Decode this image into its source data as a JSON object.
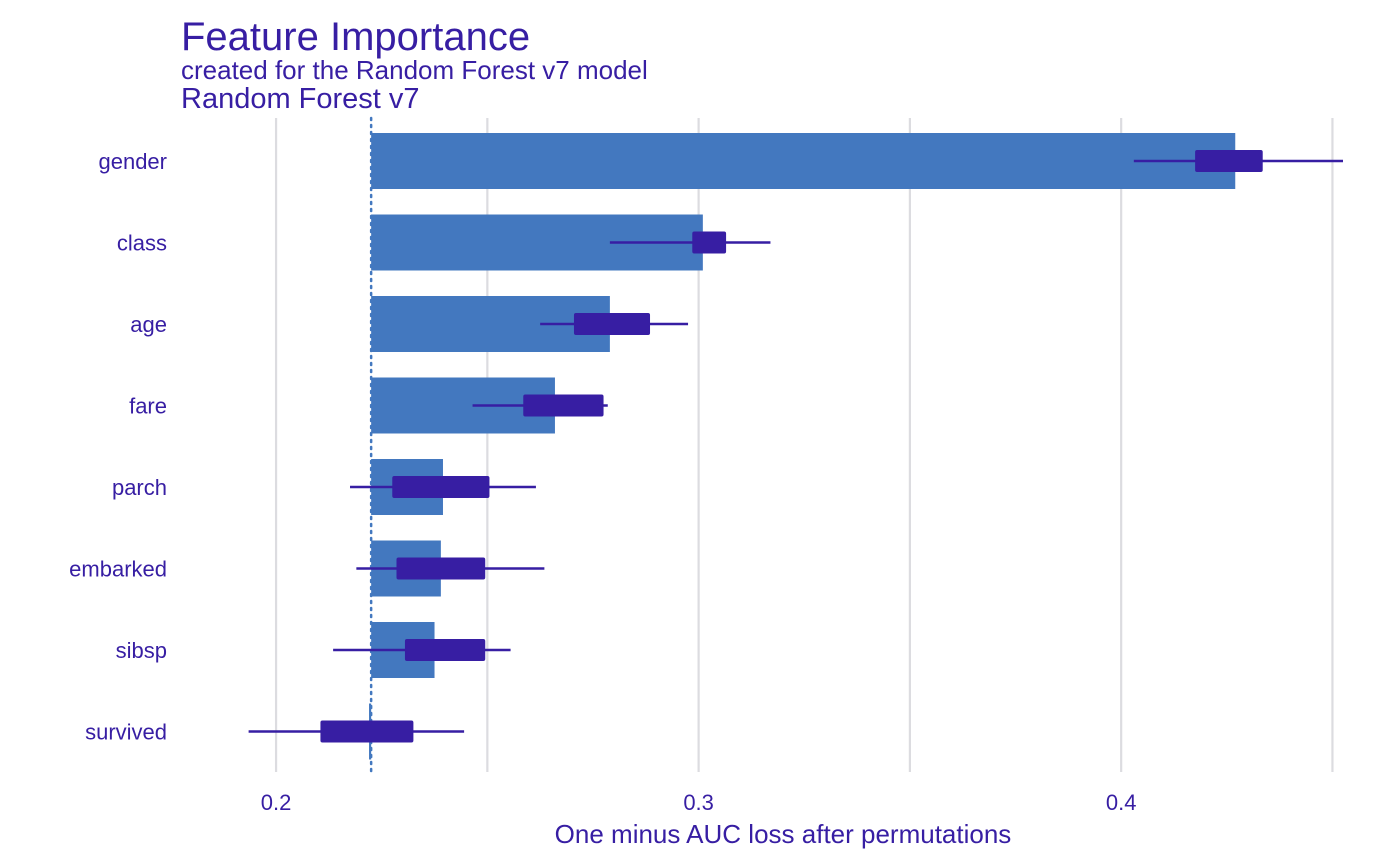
{
  "chart_data": {
    "type": "bar",
    "title": "Feature Importance",
    "subtitle": "created for the Random Forest v7 model",
    "facet_label": "Random Forest v7",
    "xlabel": "One minus AUC loss after permutations",
    "ylabel": "",
    "xlim": [
      0.1775,
      0.4525
    ],
    "x_ticks": [
      0.2,
      0.3,
      0.4
    ],
    "x_tick_labels": [
      "0.2",
      "0.3",
      "0.4"
    ],
    "minor_grid": [
      0.25,
      0.35,
      0.45
    ],
    "baseline": 0.2225,
    "categories": [
      "gender",
      "class",
      "age",
      "fare",
      "parch",
      "embarked",
      "sibsp",
      "survived"
    ],
    "values": [
      0.427,
      0.301,
      0.279,
      0.266,
      0.2395,
      0.239,
      0.2375,
      0.222
    ],
    "boxplots": [
      {
        "min": 0.403,
        "q1": 0.4175,
        "q3": 0.4335,
        "max": 0.4525
      },
      {
        "min": 0.279,
        "q1": 0.2985,
        "q3": 0.3065,
        "max": 0.317
      },
      {
        "min": 0.2625,
        "q1": 0.2705,
        "q3": 0.2885,
        "max": 0.2975
      },
      {
        "min": 0.2465,
        "q1": 0.2585,
        "q3": 0.2775,
        "max": 0.2785
      },
      {
        "min": 0.2175,
        "q1": 0.2275,
        "q3": 0.2505,
        "max": 0.2615
      },
      {
        "min": 0.219,
        "q1": 0.2285,
        "q3": 0.2495,
        "max": 0.2635
      },
      {
        "min": 0.2135,
        "q1": 0.2305,
        "q3": 0.2495,
        "max": 0.2555
      },
      {
        "min": 0.1935,
        "q1": 0.2105,
        "q3": 0.2325,
        "max": 0.2445
      }
    ],
    "grid": true,
    "legend": "none",
    "colors": {
      "bar": "#4378bf",
      "box": "#371ea3",
      "text": "#371ea3",
      "grid": "#dcdce0",
      "baseline": "#4378bf"
    }
  }
}
